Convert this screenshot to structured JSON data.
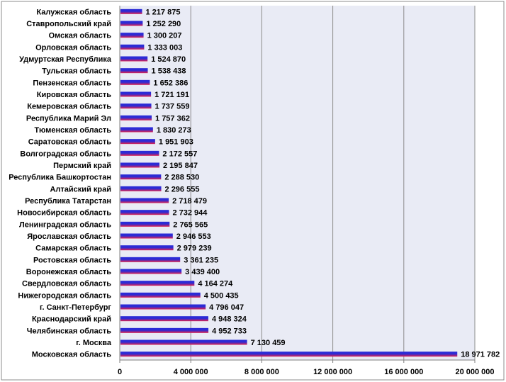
{
  "chart_data": {
    "type": "bar",
    "orientation": "horizontal",
    "title": "",
    "xlabel": "",
    "ylabel": "",
    "xlim": [
      0,
      20000000
    ],
    "x_ticks": [
      0,
      4000000,
      8000000,
      12000000,
      16000000,
      20000000
    ],
    "x_tick_labels": [
      "0",
      "4 000 000",
      "8 000 000",
      "12 000 000",
      "16 000 000",
      "20 000 000"
    ],
    "grid": "vertical",
    "legend": "none",
    "colors": {
      "bar_top": "#2b2bd6",
      "bar_bottom": "#e0234e",
      "plot_bg": "#e9ebf5",
      "grid": "#8c8c8c"
    },
    "categories": [
      "Калужская область",
      "Ставропольский край",
      "Омская область",
      "Орловская область",
      "Удмуртская Республика",
      "Тульская область",
      "Пензенская область",
      "Кировская область",
      "Кемеровская область",
      "Республика Марий Эл",
      "Тюменская область",
      "Саратовская область",
      "Волгоградская область",
      "Пермский край",
      "Республика Башкортостан",
      "Алтайский край",
      "Республика Татарстан",
      "Новосибирская область",
      "Ленинградская область",
      "Ярославская область",
      "Самарская область",
      "Ростовская область",
      "Воронежская область",
      "Свердловская область",
      "Нижегородская область",
      "г. Санкт-Петербург",
      "Краснодарский край",
      "Челябинская область",
      "г. Москва",
      "Московская область"
    ],
    "values": [
      1217875,
      1252290,
      1300207,
      1333003,
      1524870,
      1538438,
      1652386,
      1721191,
      1737559,
      1757362,
      1830273,
      1951903,
      2172557,
      2195847,
      2288530,
      2296555,
      2718479,
      2732944,
      2765565,
      2946553,
      2979239,
      3361235,
      3439400,
      4164274,
      4500435,
      4796047,
      4948324,
      4952733,
      7130459,
      18971782
    ],
    "value_labels": [
      "1 217 875",
      "1 252 290",
      "1 300 207",
      "1 333 003",
      "1 524 870",
      "1 538 438",
      "1 652 386",
      "1 721 191",
      "1 737 559",
      "1 757 362",
      "1 830 273",
      "1 951 903",
      "2 172 557",
      "2 195 847",
      "2 288 530",
      "2 296 555",
      "2 718 479",
      "2 732 944",
      "2 765 565",
      "2 946 553",
      "2 979 239",
      "3 361 235",
      "3 439 400",
      "4 164 274",
      "4 500 435",
      "4 796 047",
      "4 948 324",
      "4 952 733",
      "7 130 459",
      "18 971 782"
    ]
  }
}
